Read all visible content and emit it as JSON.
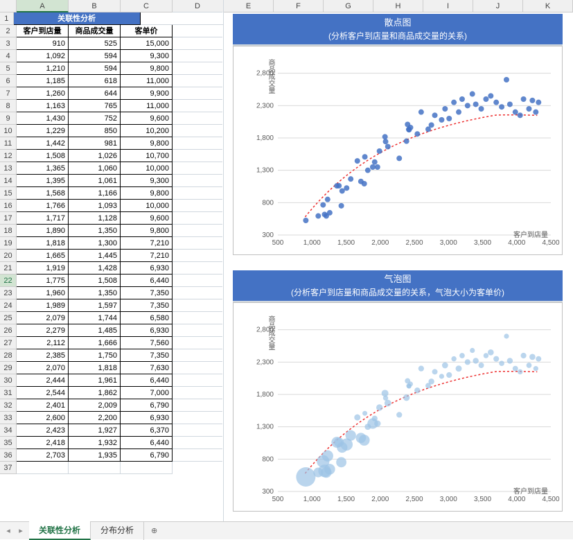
{
  "table": {
    "title": "关联性分析",
    "headers": [
      "客户到店量",
      "商品成交量",
      "客单价"
    ],
    "col_letters": [
      "A",
      "B",
      "C",
      "D"
    ],
    "right_col_letters": [
      "E",
      "F",
      "G",
      "H",
      "I",
      "J",
      "K"
    ],
    "rows": [
      [
        910,
        525,
        15000
      ],
      [
        1092,
        594,
        9300
      ],
      [
        1210,
        594,
        9800
      ],
      [
        1185,
        618,
        11000
      ],
      [
        1260,
        644,
        9900
      ],
      [
        1163,
        765,
        11000
      ],
      [
        1430,
        752,
        9600
      ],
      [
        1229,
        850,
        10200
      ],
      [
        1442,
        981,
        9800
      ],
      [
        1508,
        1026,
        10700
      ],
      [
        1365,
        1060,
        10000
      ],
      [
        1395,
        1061,
        9300
      ],
      [
        1568,
        1166,
        9800
      ],
      [
        1766,
        1093,
        10000
      ],
      [
        1717,
        1128,
        9600
      ],
      [
        1890,
        1350,
        9800
      ],
      [
        1818,
        1300,
        7210
      ],
      [
        1665,
        1445,
        7210
      ],
      [
        1919,
        1428,
        6930
      ],
      [
        1775,
        1508,
        6440
      ],
      [
        1960,
        1350,
        7350
      ],
      [
        1989,
        1597,
        7350
      ],
      [
        2079,
        1744,
        6580
      ],
      [
        2279,
        1485,
        6930
      ],
      [
        2112,
        1666,
        7560
      ],
      [
        2385,
        1750,
        7350
      ],
      [
        2070,
        1818,
        7630
      ],
      [
        2444,
        1961,
        6440
      ],
      [
        2544,
        1862,
        7000
      ],
      [
        2401,
        2009,
        6790
      ],
      [
        2600,
        2200,
        6930
      ],
      [
        2423,
        1927,
        6370
      ],
      [
        2418,
        1932,
        6440
      ],
      [
        2703,
        1935,
        6790
      ]
    ],
    "selected_row_idx": 22,
    "start_row_number": 3
  },
  "chart1": {
    "title": "散点图",
    "subtitle": "(分析客户到店量和商品成交量的关系)",
    "y_label": "商品成交量",
    "x_label": "客户到店量",
    "xlim": [
      500,
      4500
    ],
    "ylim": [
      300,
      3000
    ],
    "xticks": [
      500,
      1000,
      1500,
      2000,
      2500,
      3000,
      3500,
      4000,
      4500
    ],
    "yticks": [
      300,
      800,
      1300,
      1800,
      2300,
      2800
    ],
    "point_color": "#4472c4",
    "point_r": 4,
    "point_opacity": 0.85,
    "trend_color": "#ed2e2e",
    "trend_dash": "3 3",
    "grid_color": "#d9d9d9",
    "tick_font": 10,
    "points": [
      [
        910,
        525
      ],
      [
        1092,
        594
      ],
      [
        1210,
        594
      ],
      [
        1185,
        618
      ],
      [
        1260,
        644
      ],
      [
        1163,
        765
      ],
      [
        1430,
        752
      ],
      [
        1229,
        850
      ],
      [
        1442,
        981
      ],
      [
        1508,
        1026
      ],
      [
        1365,
        1060
      ],
      [
        1395,
        1061
      ],
      [
        1568,
        1166
      ],
      [
        1766,
        1093
      ],
      [
        1717,
        1128
      ],
      [
        1890,
        1350
      ],
      [
        1818,
        1300
      ],
      [
        1665,
        1445
      ],
      [
        1919,
        1428
      ],
      [
        1775,
        1508
      ],
      [
        1960,
        1350
      ],
      [
        1989,
        1597
      ],
      [
        2079,
        1744
      ],
      [
        2279,
        1485
      ],
      [
        2112,
        1666
      ],
      [
        2385,
        1750
      ],
      [
        2070,
        1818
      ],
      [
        2444,
        1961
      ],
      [
        2544,
        1862
      ],
      [
        2401,
        2009
      ],
      [
        2600,
        2200
      ],
      [
        2423,
        1927
      ],
      [
        2418,
        1932
      ],
      [
        2703,
        1935
      ],
      [
        2750,
        2000
      ],
      [
        2800,
        2150
      ],
      [
        2900,
        2080
      ],
      [
        2950,
        2250
      ],
      [
        3010,
        2100
      ],
      [
        3080,
        2350
      ],
      [
        3150,
        2200
      ],
      [
        3200,
        2400
      ],
      [
        3280,
        2300
      ],
      [
        3350,
        2480
      ],
      [
        3400,
        2320
      ],
      [
        3480,
        2250
      ],
      [
        3550,
        2400
      ],
      [
        3620,
        2450
      ],
      [
        3700,
        2350
      ],
      [
        3780,
        2280
      ],
      [
        3850,
        2700
      ],
      [
        3900,
        2320
      ],
      [
        3980,
        2200
      ],
      [
        4050,
        2150
      ],
      [
        4100,
        2400
      ],
      [
        4180,
        2250
      ],
      [
        4230,
        2380
      ],
      [
        4280,
        2200
      ],
      [
        4320,
        2350
      ]
    ]
  },
  "chart2": {
    "title": "气泡图",
    "subtitle": "(分析客户到店量和商品成交量的关系，气泡大小为客单价)",
    "y_label": "商品成交量",
    "x_label": "客户到店量",
    "xlim": [
      500,
      4500
    ],
    "ylim": [
      300,
      3000
    ],
    "xticks": [
      500,
      1000,
      1500,
      2000,
      2500,
      3000,
      3500,
      4000,
      4500
    ],
    "yticks": [
      300,
      800,
      1300,
      1800,
      2300,
      2800
    ],
    "point_color": "#9cc3e6",
    "point_opacity": 0.7,
    "trend_color": "#ed2e2e",
    "trend_dash": "3 3",
    "grid_color": "#d9d9d9",
    "tick_font": 10,
    "size_range": [
      3,
      14
    ],
    "size_domain": [
      6000,
      15000
    ],
    "points": [
      [
        910,
        525,
        15000
      ],
      [
        1092,
        594,
        9300
      ],
      [
        1210,
        594,
        9800
      ],
      [
        1185,
        618,
        11000
      ],
      [
        1260,
        644,
        9900
      ],
      [
        1163,
        765,
        11000
      ],
      [
        1430,
        752,
        9600
      ],
      [
        1229,
        850,
        10200
      ],
      [
        1442,
        981,
        9800
      ],
      [
        1508,
        1026,
        10700
      ],
      [
        1365,
        1060,
        10000
      ],
      [
        1395,
        1061,
        9300
      ],
      [
        1568,
        1166,
        9800
      ],
      [
        1766,
        1093,
        10000
      ],
      [
        1717,
        1128,
        9600
      ],
      [
        1890,
        1350,
        9800
      ],
      [
        1818,
        1300,
        7210
      ],
      [
        1665,
        1445,
        7210
      ],
      [
        1919,
        1428,
        6930
      ],
      [
        1775,
        1508,
        6440
      ],
      [
        1960,
        1350,
        7350
      ],
      [
        1989,
        1597,
        7350
      ],
      [
        2079,
        1744,
        6580
      ],
      [
        2279,
        1485,
        6930
      ],
      [
        2112,
        1666,
        7560
      ],
      [
        2385,
        1750,
        7350
      ],
      [
        2070,
        1818,
        7630
      ],
      [
        2444,
        1961,
        6440
      ],
      [
        2544,
        1862,
        7000
      ],
      [
        2401,
        2009,
        6790
      ],
      [
        2600,
        2200,
        6930
      ],
      [
        2423,
        1927,
        6370
      ],
      [
        2418,
        1932,
        6440
      ],
      [
        2703,
        1935,
        6790
      ],
      [
        2750,
        2000,
        7000
      ],
      [
        2800,
        2150,
        6800
      ],
      [
        2900,
        2080,
        6500
      ],
      [
        2950,
        2250,
        7100
      ],
      [
        3010,
        2100,
        6900
      ],
      [
        3080,
        2350,
        6600
      ],
      [
        3150,
        2200,
        7200
      ],
      [
        3200,
        2400,
        6700
      ],
      [
        3280,
        2300,
        6900
      ],
      [
        3350,
        2480,
        6500
      ],
      [
        3400,
        2320,
        7000
      ],
      [
        3480,
        2250,
        6800
      ],
      [
        3550,
        2400,
        6600
      ],
      [
        3620,
        2450,
        7100
      ],
      [
        3700,
        2350,
        6900
      ],
      [
        3780,
        2280,
        6700
      ],
      [
        3850,
        2700,
        6500
      ],
      [
        3900,
        2320,
        7000
      ],
      [
        3980,
        2200,
        6800
      ],
      [
        4050,
        2150,
        6600
      ],
      [
        4100,
        2400,
        6900
      ],
      [
        4180,
        2250,
        6700
      ],
      [
        4230,
        2380,
        7100
      ],
      [
        4280,
        2200,
        6500
      ],
      [
        4320,
        2350,
        6800
      ]
    ]
  },
  "tabs": {
    "active": "关联性分析",
    "items": [
      "关联性分析",
      "分布分析"
    ]
  }
}
